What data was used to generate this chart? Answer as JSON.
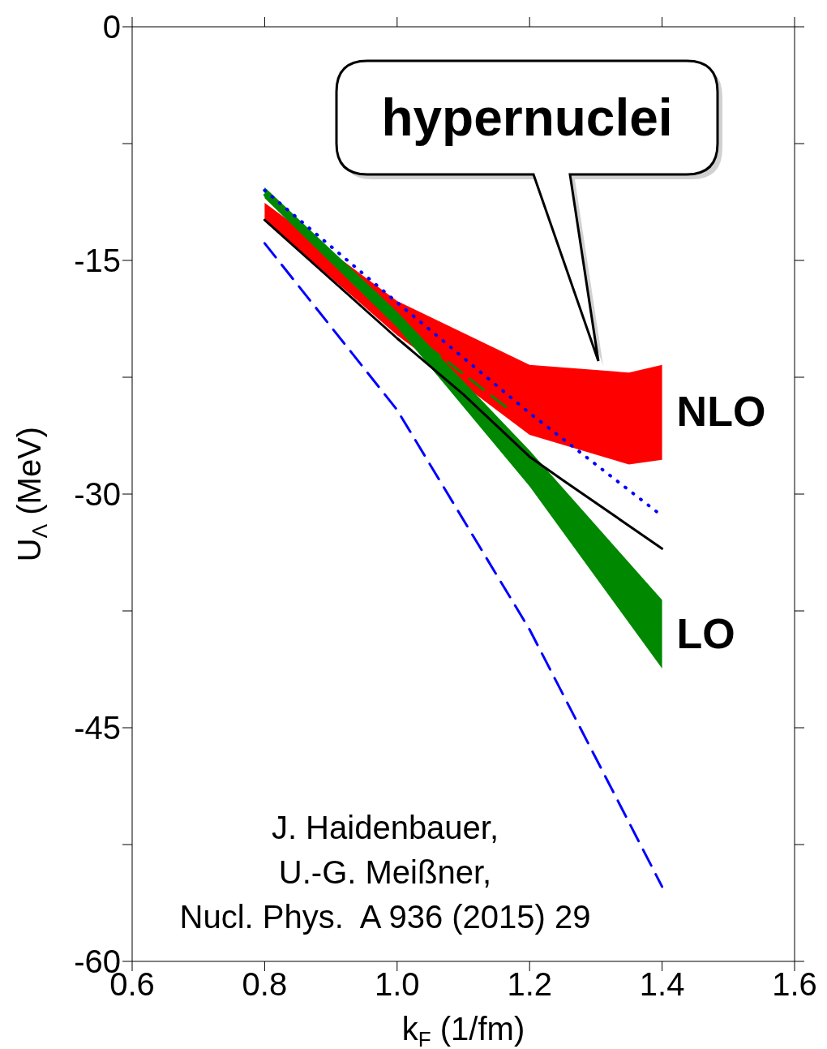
{
  "chart_data": {
    "type": "line",
    "xlabel": "k$_{F}$ (1/fm)",
    "ylabel": "U$_{Λ}$ (MeV)",
    "xlim": [
      0.6,
      1.6
    ],
    "xticks": [
      0.6,
      0.8,
      {
        "value": 1,
        "label": "1.0"
      },
      1.2,
      1.4,
      1.6
    ],
    "ylim": [
      -60,
      0
    ],
    "yticks": [
      0,
      {
        "value": -7.5,
        "label": null
      },
      -15,
      {
        "value": -22.5,
        "label": null
      },
      -30,
      {
        "value": -37.5,
        "label": null
      },
      -45,
      {
        "value": -52.5,
        "label": null
      },
      -60
    ],
    "series": [
      {
        "type": "area",
        "name": "NLO",
        "color": "#ff0000",
        "x": [
          0.8,
          1.0,
          1.2,
          1.35,
          1.4,
          1.4,
          1.35,
          1.2,
          1.0,
          0.8
        ],
        "values": [
          -11.3,
          -17.6,
          -21.7,
          -22.2,
          -21.7,
          -27.8,
          -28.1,
          -26.2,
          -19.8,
          -12.4
        ]
      },
      {
        "type": "area",
        "name": "LO",
        "color": "#008800",
        "x": [
          0.8,
          1.0,
          1.2,
          1.4,
          1.4,
          1.2,
          1.0,
          0.8
        ],
        "values": [
          -10.3,
          -18.3,
          -27.2,
          -36.8,
          -41.2,
          -29.5,
          -19.3,
          -11.0
        ]
      },
      {
        "color": "#008800",
        "line_style": "dashed",
        "x": [
          0.8,
          1.0,
          1.17
        ],
        "values": [
          -10.8,
          -19.0,
          -24.6
        ]
      },
      {
        "color": "#0000ff",
        "line_style": "dotted",
        "x": [
          0.8,
          1.0,
          1.2,
          1.4
        ],
        "values": [
          -10.5,
          -17.7,
          -24.8,
          -31.4
        ]
      },
      {
        "color": "#0000ff",
        "line_style": "dashed",
        "x": [
          0.8,
          1.0,
          1.2,
          1.4
        ],
        "values": [
          -13.9,
          -24.6,
          -38.7,
          -55.2
        ]
      },
      {
        "color": "#000000",
        "line_style": "solid",
        "x": [
          0.8,
          1.0,
          1.1,
          1.2,
          1.25,
          1.4
        ],
        "values": [
          -12.4,
          -20.0,
          -23.6,
          -27.6,
          -29.1,
          -33.5
        ]
      }
    ],
    "annotations": [
      "hypernuclei",
      "J. Haidenbauer,",
      "U.-G. Meißner,",
      "Nucl. Phys.  A 936 (2015) 29"
    ]
  }
}
